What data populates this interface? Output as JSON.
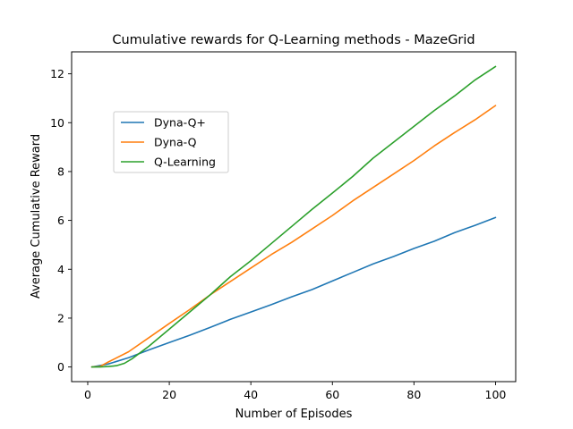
{
  "chart_data": {
    "type": "line",
    "title": "Cumulative rewards for Q-Learning methods - MazeGrid",
    "xlabel": "Number of Episodes",
    "ylabel": "Average Cumulative Reward",
    "xlim": [
      -3.95,
      104.95
    ],
    "ylim": [
      -0.6,
      12.9
    ],
    "xticks": [
      0,
      20,
      40,
      60,
      80,
      100
    ],
    "yticks": [
      0,
      2,
      4,
      6,
      8,
      10,
      12
    ],
    "grid": false,
    "legend_position": "upper-left",
    "series": [
      {
        "name": "Dyna-Q+",
        "color": "#1f77b4",
        "x": [
          1,
          5,
          10,
          15,
          20,
          25,
          30,
          35,
          40,
          45,
          50,
          55,
          60,
          65,
          70,
          75,
          80,
          85,
          90,
          95,
          100
        ],
        "y": [
          0.0,
          0.12,
          0.38,
          0.7,
          1.0,
          1.3,
          1.62,
          1.95,
          2.25,
          2.55,
          2.87,
          3.17,
          3.52,
          3.87,
          4.22,
          4.52,
          4.85,
          5.15,
          5.5,
          5.8,
          6.12
        ]
      },
      {
        "name": "Dyna-Q",
        "color": "#ff7f0e",
        "x": [
          1,
          3,
          5,
          10,
          15,
          20,
          25,
          30,
          35,
          40,
          45,
          50,
          55,
          60,
          65,
          70,
          75,
          80,
          85,
          90,
          95,
          100
        ],
        "y": [
          0.0,
          0.02,
          0.2,
          0.62,
          1.2,
          1.78,
          2.35,
          2.95,
          3.5,
          4.05,
          4.6,
          5.1,
          5.65,
          6.2,
          6.8,
          7.35,
          7.9,
          8.45,
          9.05,
          9.6,
          10.12,
          10.7
        ]
      },
      {
        "name": "Q-Learning",
        "color": "#2ca02c",
        "x": [
          1,
          3,
          5,
          7,
          9,
          11,
          13,
          15,
          20,
          25,
          30,
          35,
          40,
          45,
          50,
          55,
          60,
          65,
          70,
          75,
          80,
          85,
          90,
          95,
          100
        ],
        "y": [
          0.0,
          0.0,
          0.02,
          0.05,
          0.15,
          0.35,
          0.6,
          0.85,
          1.55,
          2.25,
          2.95,
          3.7,
          4.35,
          5.05,
          5.75,
          6.45,
          7.12,
          7.8,
          8.55,
          9.2,
          9.85,
          10.5,
          11.1,
          11.75,
          12.3
        ]
      }
    ]
  }
}
